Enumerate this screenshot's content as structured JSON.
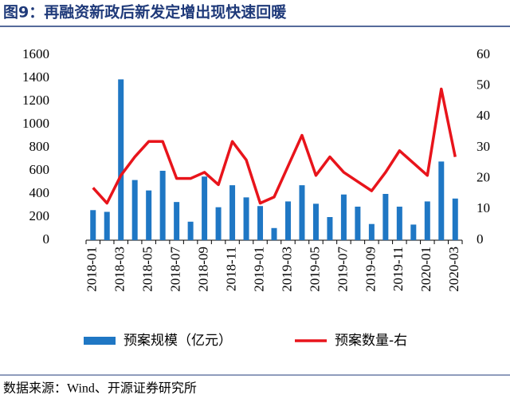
{
  "chart_data": {
    "type": "bar-line",
    "title": "图9：再融资新政后新发定增出现快速回暖",
    "categories": [
      "2018-01",
      null,
      "2018-03",
      null,
      "2018-05",
      null,
      "2018-07",
      null,
      "2018-09",
      null,
      "2018-11",
      null,
      "2019-01",
      null,
      "2019-03",
      null,
      "2019-05",
      null,
      "2019-07",
      null,
      "2019-09",
      null,
      "2019-11",
      null,
      "2020-01",
      null,
      "2020-03"
    ],
    "series": [
      {
        "name": "预案规模（亿元）",
        "type": "bar",
        "color": "#1f77c4",
        "values": [
          260,
          245,
          1390,
          520,
          430,
          600,
          330,
          160,
          550,
          285,
          475,
          370,
          295,
          105,
          335,
          475,
          315,
          200,
          395,
          290,
          140,
          400,
          290,
          135,
          335,
          680,
          360
        ]
      },
      {
        "name": "预案数量-右",
        "type": "line",
        "axis": "y2",
        "color": "#e8141b",
        "values": [
          17,
          12,
          21,
          27,
          32,
          32,
          20,
          20,
          22,
          18,
          32,
          26,
          12,
          14,
          24,
          34,
          21,
          27,
          22,
          19,
          16,
          22,
          29,
          25,
          21,
          49,
          27
        ]
      }
    ],
    "ylim": [
      0,
      1600
    ],
    "yticks": [
      0,
      200,
      400,
      600,
      800,
      1000,
      1200,
      1400,
      1600
    ],
    "y2lim": [
      0,
      60
    ],
    "y2ticks": [
      0,
      10,
      20,
      30,
      40,
      50,
      60
    ],
    "grid": false
  },
  "source": "数据来源：Wind、开源证券研究所"
}
